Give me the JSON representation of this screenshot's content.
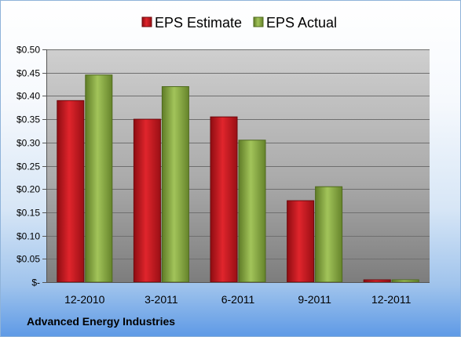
{
  "company": "Advanced Energy Industries",
  "chart_data": {
    "type": "bar",
    "categories": [
      "12-2010",
      "3-2011",
      "6-2011",
      "9-2011",
      "12-2011"
    ],
    "series": [
      {
        "name": "EPS Estimate",
        "values": [
          0.39,
          0.35,
          0.355,
          0.175,
          0.005
        ],
        "color": "#c0141c"
      },
      {
        "name": "EPS Actual",
        "values": [
          0.445,
          0.42,
          0.305,
          0.205,
          0.005
        ],
        "color": "#86a83e"
      }
    ],
    "ylim": [
      0,
      0.5
    ],
    "y_ticks": [
      0,
      0.05,
      0.1,
      0.15,
      0.2,
      0.25,
      0.3,
      0.35,
      0.4,
      0.45,
      0.5
    ],
    "y_tick_labels": [
      "$-",
      "$0.05",
      "$0.10",
      "$0.15",
      "$0.20",
      "$0.25",
      "$0.30",
      "$0.35",
      "$0.40",
      "$0.45",
      "$0.50"
    ],
    "grid": true,
    "legend_position": "top"
  }
}
